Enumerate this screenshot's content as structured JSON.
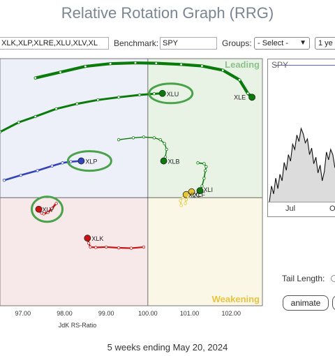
{
  "title": "Relative Rotation Graph (RRG)",
  "toolbar": {
    "symbols_value": "XLK,XLP,XLRE,XLU,XLV,XL",
    "benchmark_label": "Benchmark:",
    "benchmark_value": "SPY",
    "groups_label": "Groups:",
    "groups_value": "- Select -",
    "period_value": "1 ye"
  },
  "colors": {
    "leading": "#e9f3e5",
    "improving": "#eef0f9",
    "lagging": "#f7e8ea",
    "weakening": "#fbf7e6",
    "green": "#0a7a0a",
    "red": "#cc1111",
    "blue": "#3344bb",
    "yellow": "#e6c530",
    "highlight": "#4aa34a"
  },
  "chart_data": {
    "type": "scatter",
    "title": "Relative Rotation Graph (RRG)",
    "xlabel": "JdK RS-Ratio",
    "ylabel": "",
    "x_ticks": [
      "97.00",
      "98.00",
      "99.00",
      "100.00",
      "101.00",
      "102.00"
    ],
    "xlim": [
      96.45,
      102.75
    ],
    "ylim": [
      97.2,
      103.6
    ],
    "quadrants": {
      "top_right": "Leading",
      "bottom_right": "Weakening"
    },
    "series": [
      {
        "name": "XLE",
        "color": "#0a7a0a",
        "x": [
          97.3,
          97.9,
          98.5,
          99.1,
          99.7,
          100.2,
          100.8,
          101.3,
          101.8,
          102.2,
          102.4,
          102.5
        ],
        "y": [
          103.1,
          103.25,
          103.4,
          103.47,
          103.49,
          103.48,
          103.45,
          103.41,
          103.3,
          103.05,
          102.7,
          102.6
        ]
      },
      {
        "name": "XLU",
        "color": "#0a7a0a",
        "x": [
          96.45,
          96.9,
          97.3,
          97.8,
          98.3,
          98.8,
          99.3,
          99.8,
          100.15,
          100.35
        ],
        "y": [
          101.7,
          101.95,
          102.1,
          102.3,
          102.43,
          102.53,
          102.6,
          102.66,
          102.69,
          102.7
        ]
      },
      {
        "name": "XLB",
        "color": "#0a7a0a",
        "x": [
          99.3,
          99.65,
          99.9,
          100.15,
          100.3,
          100.4,
          100.45,
          100.42,
          100.38
        ],
        "y": [
          101.5,
          101.55,
          101.57,
          101.55,
          101.5,
          101.4,
          101.25,
          101.05,
          100.95
        ]
      },
      {
        "name": "XLI",
        "color": "#0a7a0a",
        "x": [
          101.2,
          101.35,
          101.4,
          101.38,
          101.35,
          101.3,
          101.25
        ],
        "y": [
          100.9,
          100.88,
          100.8,
          100.7,
          100.5,
          100.3,
          100.18
        ]
      },
      {
        "name": "XLC",
        "color": "#e6c530",
        "x": [
          100.8,
          100.78,
          100.84,
          100.9,
          100.95,
          100.92
        ],
        "y": [
          99.8,
          99.92,
          100.0,
          100.05,
          100.06,
          100.08
        ]
      },
      {
        "name": "XLF",
        "color": "#e6c530",
        "x": [
          100.9,
          100.92,
          100.97,
          101.0,
          101.02,
          101.05
        ],
        "y": [
          99.85,
          99.95,
          100.02,
          100.08,
          100.1,
          100.15
        ]
      },
      {
        "name": "XLP",
        "color": "#3344bb",
        "x": [
          96.55,
          96.95,
          97.35,
          97.7,
          97.95,
          98.15,
          98.4
        ],
        "y": [
          100.45,
          100.58,
          100.7,
          100.82,
          100.9,
          100.93,
          100.95
        ]
      },
      {
        "name": "XLV",
        "color": "#cc1111",
        "x": [
          97.8,
          97.7,
          97.6,
          97.5,
          97.45,
          97.4,
          97.38
        ],
        "y": [
          99.85,
          99.72,
          99.62,
          99.58,
          99.6,
          99.65,
          99.7
        ]
      },
      {
        "name": "XLK",
        "color": "#cc1111",
        "x": [
          99.9,
          99.6,
          99.3,
          99.0,
          98.75,
          98.62,
          98.58,
          98.55
        ],
        "y": [
          98.72,
          98.69,
          98.7,
          98.72,
          98.71,
          98.72,
          98.82,
          98.95
        ]
      }
    ],
    "highlighted": [
      "XLU",
      "XLP",
      "XLV"
    ]
  },
  "side_chart": {
    "symbol": "SPY",
    "x_ticks": [
      "Jul",
      "Oct"
    ],
    "values": [
      3.0,
      4.2,
      3.6,
      4.8,
      4.0,
      5.1,
      4.6,
      6.0,
      5.4,
      6.6,
      6.1,
      7.4,
      7.0,
      8.1,
      7.6,
      8.6,
      8.2,
      7.5,
      7.8,
      6.6,
      7.1,
      5.9,
      6.4,
      5.2,
      5.8,
      4.6,
      5.3,
      6.8,
      6.2,
      7.0,
      6.6,
      5.6,
      6.1,
      4.8,
      5.4,
      3.9,
      4.5
    ]
  },
  "controls": {
    "tail_length_label": "Tail Length:",
    "animate_label": "animate"
  },
  "footer": "5 weeks ending May 20, 2024"
}
